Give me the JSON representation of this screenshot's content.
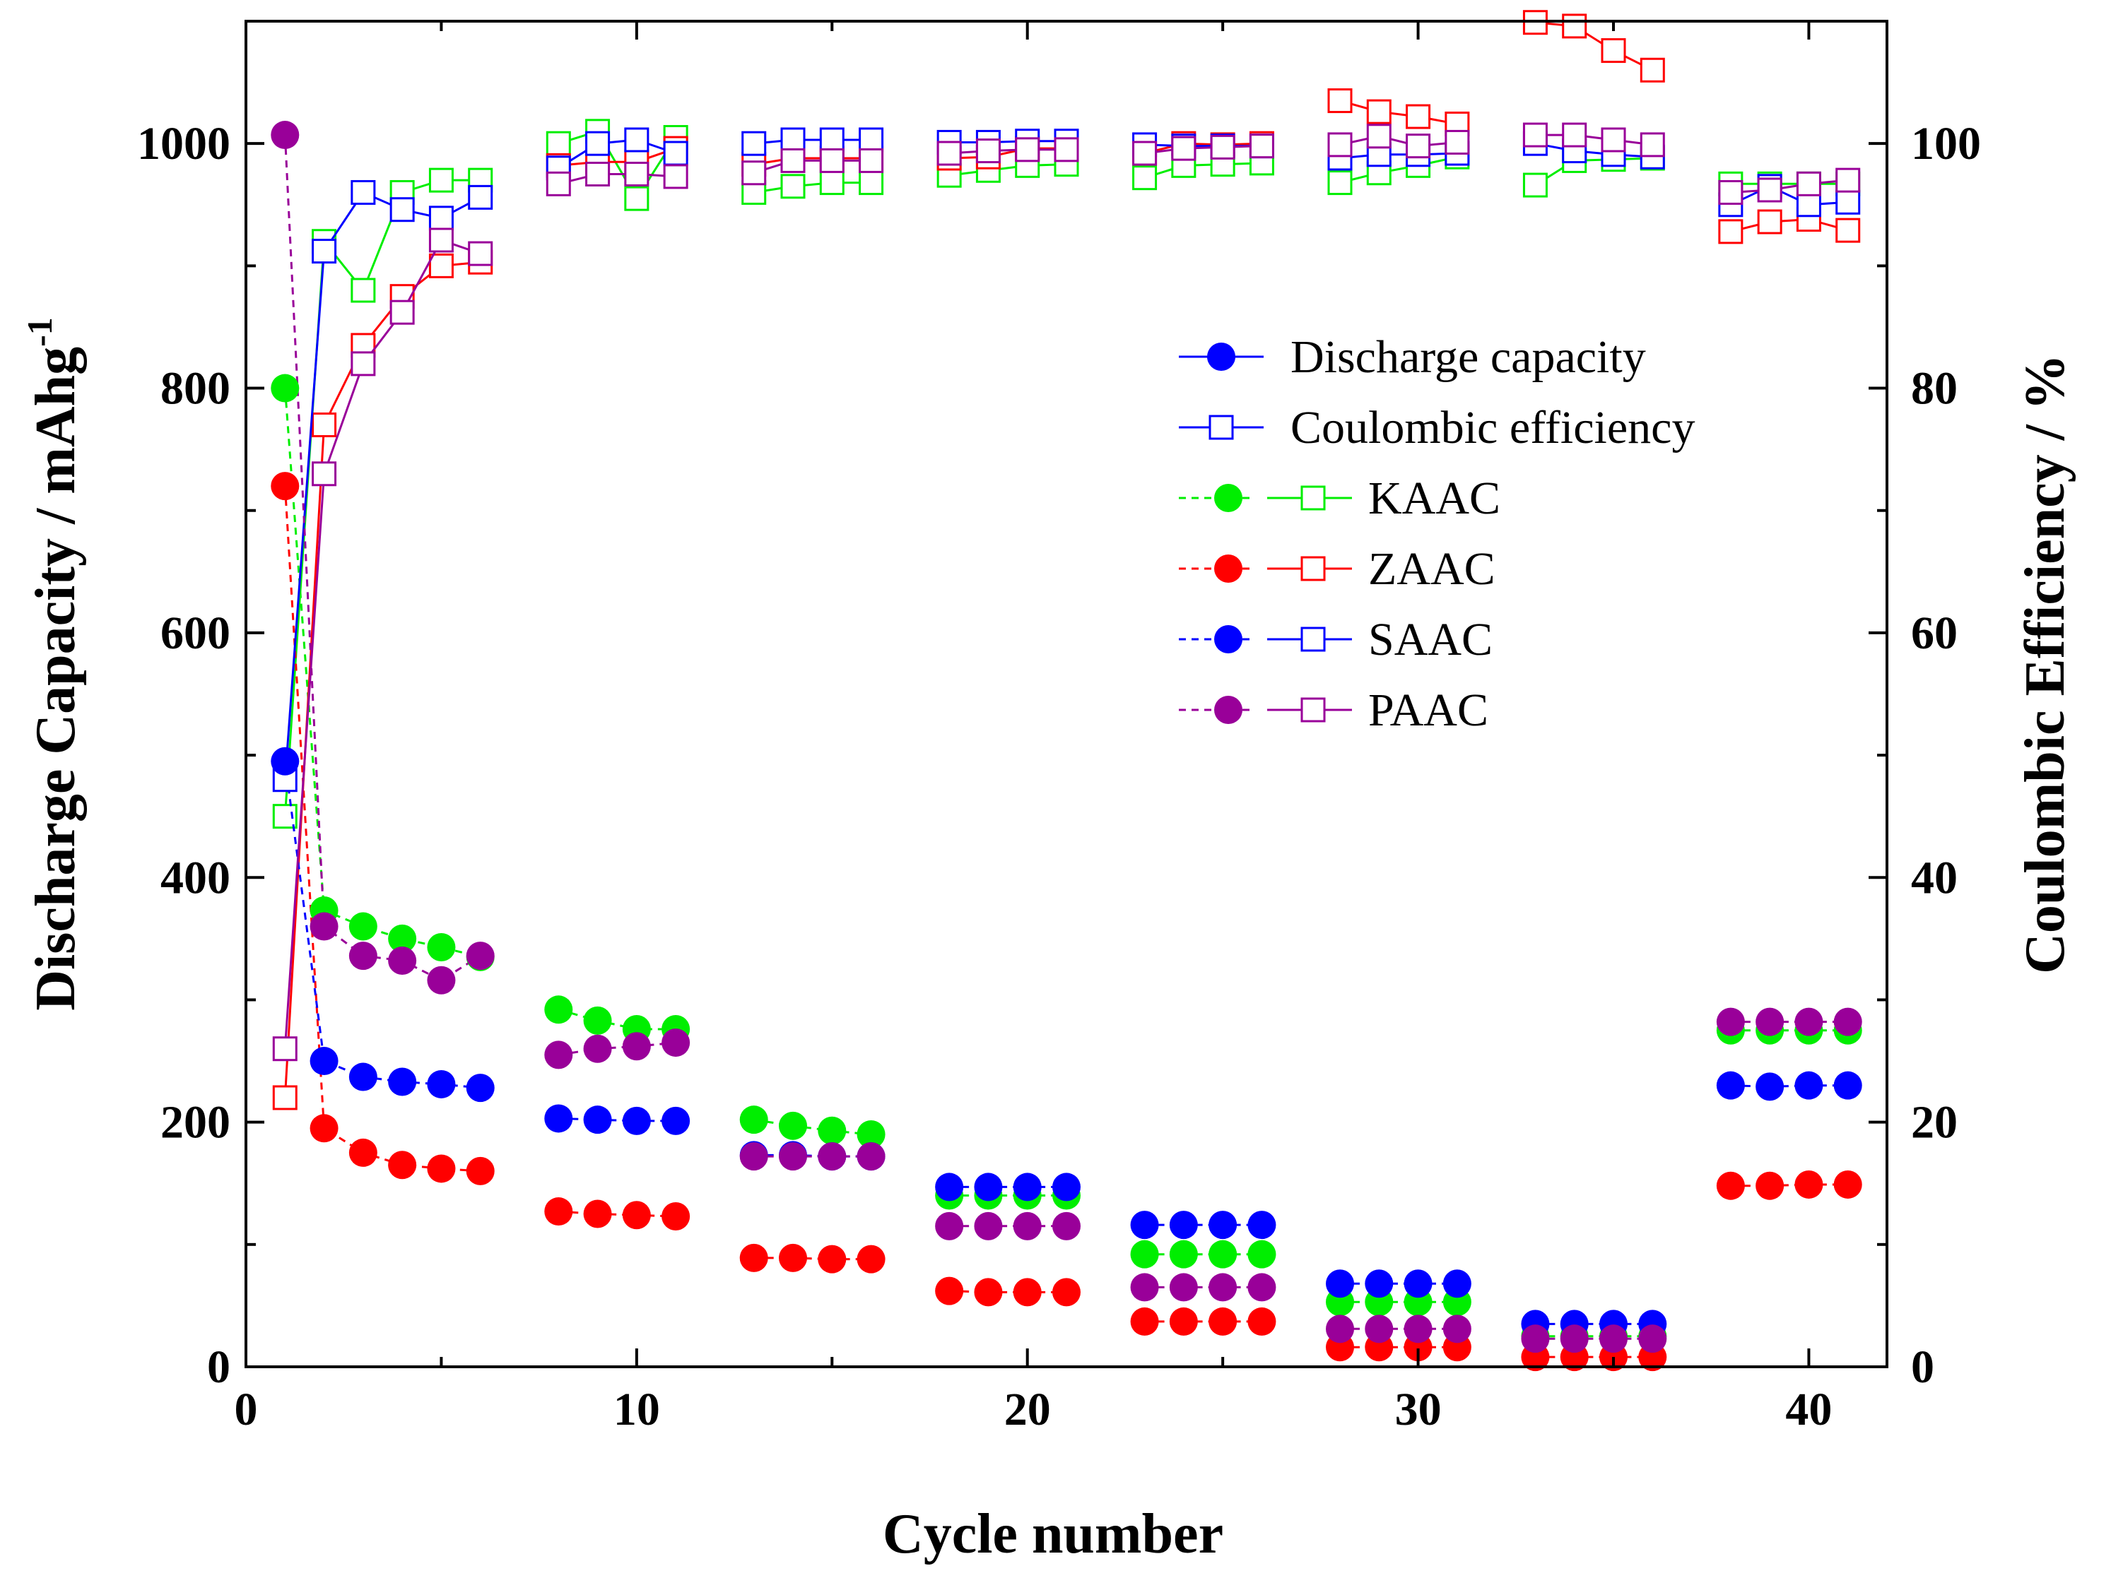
{
  "chart_data": {
    "type": "scatter",
    "xlabel": "Cycle number",
    "ylabel_left": "Discharge Capacity / mAhg",
    "ylabel_left_superscript": "-1",
    "ylabel_right": "Coulombic Efficiency / %",
    "xlim": [
      0,
      42
    ],
    "ylim_left": [
      0,
      1100
    ],
    "ylim_right": [
      0,
      110
    ],
    "x_ticks": [
      0,
      10,
      20,
      30,
      40
    ],
    "x_tick_labels": [
      "0",
      "10",
      "20",
      "30",
      "40"
    ],
    "y_left_ticks": [
      0,
      200,
      400,
      600,
      800,
      1000
    ],
    "y_left_tick_labels": [
      "0",
      "200",
      "400",
      "600",
      "800",
      "1000"
    ],
    "y_right_ticks": [
      0,
      20,
      40,
      60,
      80,
      100
    ],
    "y_right_tick_labels": [
      "0",
      "20",
      "40",
      "60",
      "80",
      "100"
    ],
    "legend": {
      "position": "upper-right",
      "entries": [
        {
          "label": "Discharge capacity",
          "kind": "capacity",
          "color": "#0000ff"
        },
        {
          "label": "Coulombic efficiency",
          "kind": "efficiency",
          "color": "#0000ff"
        },
        {
          "label": "KAAC",
          "kind": "pair",
          "color": "#00ee00"
        },
        {
          "label": "ZAAC",
          "kind": "pair",
          "color": "#ff0000"
        },
        {
          "label": "SAAC",
          "kind": "pair",
          "color": "#0000ff"
        },
        {
          "label": "PAAC",
          "kind": "pair",
          "color": "#990099"
        }
      ]
    },
    "series": [
      {
        "name": "KAAC",
        "color": "#00ee00",
        "x": [
          1,
          2,
          3,
          4,
          5,
          6,
          8,
          9,
          10,
          11,
          13,
          14,
          15,
          16,
          18,
          19,
          20,
          21,
          23,
          24,
          25,
          26,
          28,
          29,
          30,
          31,
          33,
          34,
          35,
          36,
          38,
          39,
          40,
          41
        ],
        "capacity": [
          800,
          373,
          360,
          350,
          343,
          335,
          292,
          283,
          276,
          276,
          202,
          197,
          193,
          190,
          140,
          140,
          140,
          140,
          92,
          92,
          92,
          92,
          53,
          53,
          53,
          53,
          25,
          25,
          25,
          25,
          275,
          275,
          275,
          275
        ],
        "efficiency": [
          45,
          92,
          88,
          96,
          97,
          97,
          100,
          101,
          95.5,
          100.5,
          96,
          96.5,
          96.8,
          96.8,
          97.4,
          97.8,
          98.2,
          98.3,
          97.2,
          98.2,
          98.3,
          98.4,
          96.8,
          97.6,
          98.2,
          98.9,
          96.6,
          98.6,
          98.7,
          98.8,
          96.7,
          96.7,
          96.7,
          96.7
        ]
      },
      {
        "name": "ZAAC",
        "color": "#ff0000",
        "x": [
          1,
          2,
          3,
          4,
          5,
          6,
          8,
          9,
          10,
          11,
          13,
          14,
          15,
          16,
          18,
          19,
          20,
          21,
          23,
          24,
          25,
          26,
          28,
          29,
          30,
          31,
          33,
          34,
          35,
          36,
          38,
          39,
          40,
          41
        ],
        "capacity": [
          720,
          195,
          175,
          165,
          162,
          160,
          127,
          125,
          124,
          123,
          89,
          89,
          88,
          88,
          62,
          61,
          61,
          61,
          37,
          37,
          37,
          37,
          16,
          16,
          16,
          16,
          8,
          8,
          8,
          8,
          148,
          148,
          149,
          149
        ],
        "efficiency": [
          22,
          77,
          83.5,
          87.5,
          90,
          90.3,
          98.2,
          98.5,
          98.5,
          99.6,
          98.3,
          98.8,
          98.8,
          98.8,
          98.8,
          98.9,
          99.6,
          99.6,
          99.2,
          100,
          99.9,
          100,
          103.5,
          102.6,
          102.2,
          101.6,
          109.9,
          109.6,
          107.6,
          106
        ],
        "efficiency_x": [
          1,
          2,
          3,
          4,
          5,
          6,
          8,
          9,
          10,
          11,
          13,
          14,
          15,
          16,
          18,
          19,
          20,
          21,
          23,
          24,
          25,
          26,
          28,
          29,
          30,
          31,
          33,
          34,
          35,
          36,
          38,
          39,
          40,
          41
        ],
        "efficiency_tail": [
          92.8,
          93.6,
          93.8,
          92.9
        ]
      },
      {
        "name": "SAAC",
        "color": "#0000ff",
        "x": [
          1,
          2,
          3,
          4,
          5,
          6,
          8,
          9,
          10,
          11,
          13,
          14,
          15,
          16,
          18,
          19,
          20,
          21,
          23,
          24,
          25,
          26,
          28,
          29,
          30,
          31,
          33,
          34,
          35,
          36,
          38,
          39,
          40,
          41
        ],
        "capacity": [
          495,
          250,
          237,
          233,
          231,
          228,
          203,
          202,
          201,
          201,
          173,
          173,
          172,
          172,
          147,
          147,
          147,
          147,
          116,
          116,
          116,
          116,
          68,
          68,
          68,
          68,
          35,
          35,
          35,
          35,
          230,
          229,
          230,
          230
        ],
        "efficiency": [
          48,
          91.2,
          96,
          94.6,
          93.9,
          95.6,
          98,
          100,
          100.3,
          99.2,
          100,
          100.3,
          100.3,
          100.3,
          100.1,
          100.1,
          100.2,
          100.2,
          99.9,
          99.8,
          99.8,
          99.8,
          98.8,
          99.1,
          99.1,
          99.2,
          100,
          99.4,
          99.1,
          98.9,
          95,
          96.5,
          95,
          95.2
        ]
      },
      {
        "name": "PAAC",
        "color": "#990099",
        "x": [
          1,
          2,
          3,
          4,
          5,
          6,
          8,
          9,
          10,
          11,
          13,
          14,
          15,
          16,
          18,
          19,
          20,
          21,
          23,
          24,
          25,
          26,
          28,
          29,
          30,
          31,
          33,
          34,
          35,
          36,
          38,
          39,
          40,
          41
        ],
        "capacity": [
          1007,
          360,
          336,
          332,
          316,
          336,
          255,
          260,
          262,
          265,
          172,
          172,
          172,
          172,
          115,
          115,
          115,
          115,
          65,
          65,
          65,
          65,
          31,
          31,
          31,
          31,
          23,
          23,
          23,
          23,
          282,
          282,
          282,
          282
        ],
        "efficiency": [
          26,
          73,
          82,
          86.2,
          92.1,
          91,
          96.7,
          97.5,
          97.5,
          97.3,
          97.6,
          98.6,
          98.6,
          98.6,
          99.2,
          99.4,
          99.5,
          99.5,
          99.2,
          99.6,
          99.7,
          99.8,
          99.9,
          100.6,
          99.8,
          100.1,
          100.7,
          100.7,
          100.3,
          99.9,
          96,
          96.2,
          96.7,
          97
        ]
      }
    ]
  }
}
